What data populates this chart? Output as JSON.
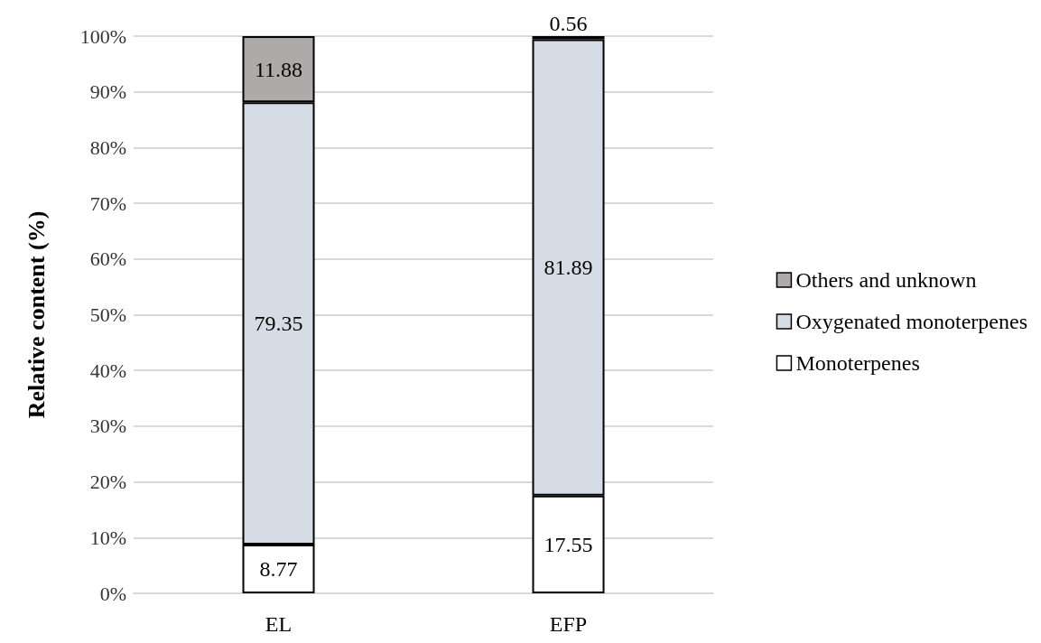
{
  "chart_data": {
    "type": "bar",
    "stacked": true,
    "ylabel": "Relative content (%)",
    "categories": [
      "EL",
      "EFP"
    ],
    "series": [
      {
        "name": "Monoterpenes",
        "color": "#ffffff",
        "values": [
          8.77,
          17.55
        ]
      },
      {
        "name": "Oxygenated monoterpenes",
        "color": "#d6dce5",
        "values": [
          79.35,
          81.89
        ]
      },
      {
        "name": "Others and unknown",
        "color": "#aeaaaa",
        "values": [
          11.88,
          0.56
        ]
      }
    ],
    "ylim": [
      0,
      100
    ],
    "yticks": [
      {
        "value": 0,
        "label": "0%"
      },
      {
        "value": 10,
        "label": "10%"
      },
      {
        "value": 20,
        "label": "20%"
      },
      {
        "value": 30,
        "label": "30%"
      },
      {
        "value": 40,
        "label": "40%"
      },
      {
        "value": 50,
        "label": "50%"
      },
      {
        "value": 60,
        "label": "60%"
      },
      {
        "value": 70,
        "label": "70%"
      },
      {
        "value": 80,
        "label": "80%"
      },
      {
        "value": 90,
        "label": "90%"
      },
      {
        "value": 100,
        "label": "100%"
      }
    ],
    "grid": "y",
    "legend": "right",
    "data_labels": true
  }
}
